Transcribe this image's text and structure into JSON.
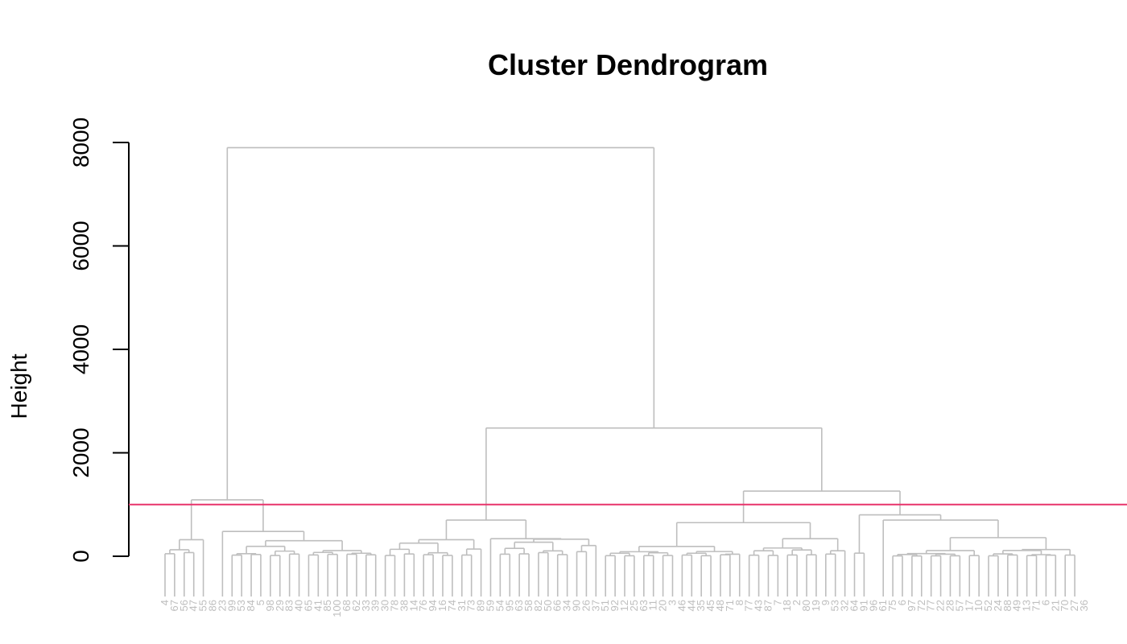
{
  "chart_data": {
    "type": "dendrogram",
    "title": "Cluster Dendrogram",
    "ylabel": "Height",
    "xlabel": "",
    "ylim": [
      0,
      8000
    ],
    "yticks": [
      0,
      2000,
      4000,
      6000,
      8000
    ],
    "cut_height": 1000,
    "colors": {
      "branches": "#bebebe",
      "cut_line": "#e8336b",
      "axis": "#000000",
      "labels": "#bebebe"
    },
    "leaves": [
      "4",
      "67",
      "56",
      "47",
      "55",
      "86",
      "23",
      "99",
      "53",
      "84",
      "5",
      "98",
      "29",
      "83",
      "40",
      "65",
      "41",
      "85",
      "100",
      "68",
      "62",
      "33",
      "39",
      "30",
      "78",
      "38",
      "14",
      "76",
      "94",
      "16",
      "74",
      "31",
      "73",
      "89",
      "59",
      "54",
      "95",
      "63",
      "58",
      "82",
      "50",
      "66",
      "34",
      "90",
      "26",
      "37",
      "51",
      "92",
      "12",
      "25",
      "63",
      "11",
      "20",
      "3",
      "46",
      "44",
      "35",
      "45",
      "48",
      "71",
      "8",
      "77",
      "43",
      "87",
      "7",
      "18",
      "2",
      "80",
      "19",
      "9",
      "53",
      "32",
      "64",
      "91",
      "96",
      "61",
      "75",
      "6",
      "97",
      "72",
      "77",
      "22",
      "28",
      "57",
      "17",
      "10",
      "52",
      "24",
      "88",
      "49",
      "13",
      "71",
      "6",
      "21",
      "70",
      "27",
      "36"
    ],
    "merges": [
      {
        "height": 7900,
        "children": [
          {
            "height": 1090
          },
          {
            "height": 2480
          }
        ]
      },
      {
        "height": 2480,
        "children": [
          {
            "height": 700
          },
          {
            "height": 1260
          }
        ]
      },
      {
        "height": 1260,
        "children": [
          {
            "height": 650
          },
          {
            "height": 800
          }
        ]
      },
      {
        "height": 1090,
        "children": [
          {
            "height": 320
          },
          {
            "height": 480
          }
        ]
      }
    ]
  }
}
